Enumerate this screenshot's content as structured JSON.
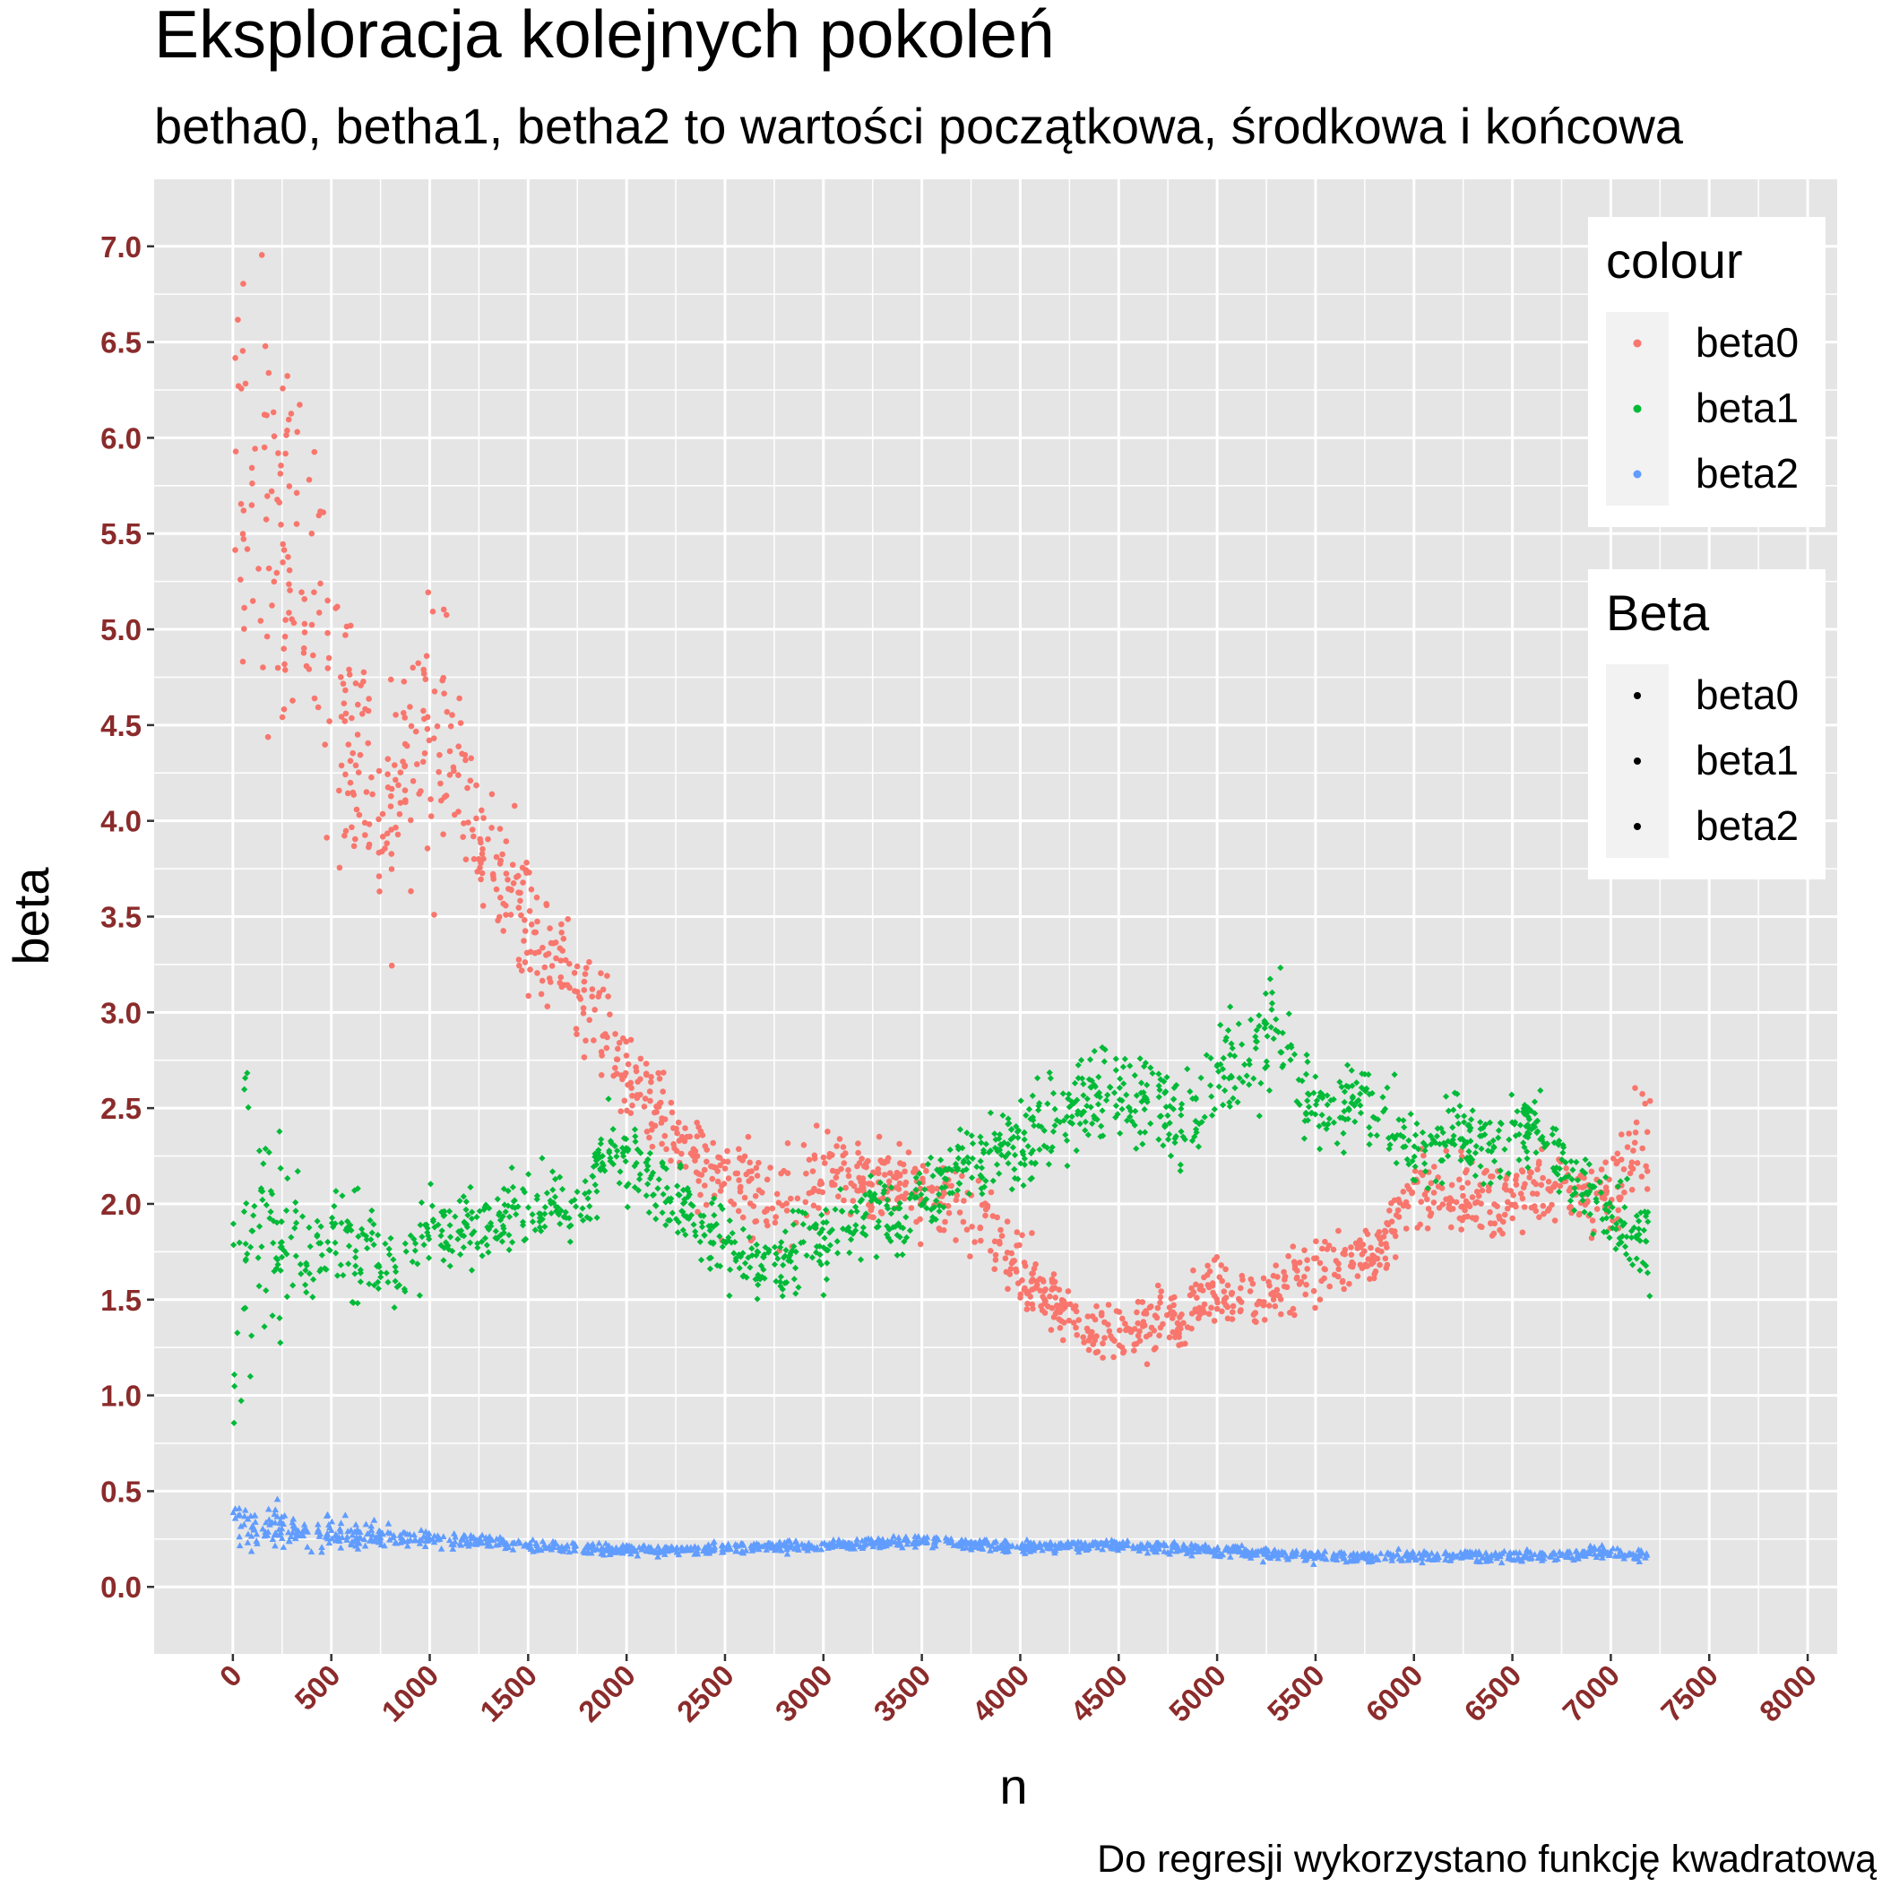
{
  "chart_data": {
    "type": "scatter",
    "title": "Eksploracja kolejnych pokoleń",
    "subtitle": "betha0, betha1, betha2 to wartości początkowa, środkowa i końcowa",
    "xlabel": "n",
    "ylabel": "beta",
    "caption": "Do regresji wykorzystano funkcję kwadratową",
    "xlim": [
      -400,
      8150
    ],
    "ylim": [
      -0.35,
      7.35
    ],
    "x_ticks": [
      "0",
      "500",
      "1000",
      "1500",
      "2000",
      "2500",
      "3000",
      "3500",
      "4000",
      "4500",
      "5000",
      "5500",
      "6000",
      "6500",
      "7000",
      "7500",
      "8000"
    ],
    "x_tick_values": [
      0,
      500,
      1000,
      1500,
      2000,
      2500,
      3000,
      3500,
      4000,
      4500,
      5000,
      5500,
      6000,
      6500,
      7000,
      7500,
      8000
    ],
    "y_ticks": [
      "0.0",
      "0.5",
      "1.0",
      "1.5",
      "2.0",
      "2.5",
      "3.0",
      "3.5",
      "4.0",
      "4.5",
      "5.0",
      "5.5",
      "6.0",
      "6.5",
      "7.0"
    ],
    "y_tick_values": [
      0,
      0.5,
      1,
      1.5,
      2,
      2.5,
      3,
      3.5,
      4,
      4.5,
      5,
      5.5,
      6,
      6.5,
      7
    ],
    "grid": true,
    "x_range_observed": [
      0,
      7200
    ],
    "series": [
      {
        "name": "beta0",
        "color": "#F8766D",
        "shape": "circle",
        "trend_x": [
          0,
          200,
          400,
          600,
          800,
          1000,
          1100,
          1200,
          1400,
          1600,
          1800,
          2000,
          2200,
          2400,
          2600,
          2800,
          3000,
          3200,
          3400,
          3600,
          3800,
          4000,
          4200,
          4400,
          4600,
          4800,
          5000,
          5200,
          5400,
          5600,
          5800,
          6000,
          6200,
          6400,
          6600,
          6800,
          7000,
          7200
        ],
        "trend_y": [
          5.9,
          5.5,
          5.2,
          4.3,
          4.1,
          4.5,
          4.6,
          4.0,
          3.6,
          3.35,
          3.05,
          2.7,
          2.4,
          2.2,
          2.1,
          2.0,
          2.15,
          2.1,
          2.1,
          2.0,
          1.9,
          1.65,
          1.45,
          1.3,
          1.35,
          1.4,
          1.55,
          1.5,
          1.6,
          1.7,
          1.75,
          2.05,
          2.05,
          1.95,
          2.1,
          2.05,
          2.05,
          2.35
        ],
        "spread": [
          0.45,
          0.5,
          0.5,
          0.35,
          0.3,
          0.35,
          0.35,
          0.2,
          0.2,
          0.2,
          0.15,
          0.12,
          0.12,
          0.12,
          0.12,
          0.12,
          0.12,
          0.1,
          0.1,
          0.1,
          0.1,
          0.1,
          0.08,
          0.08,
          0.08,
          0.08,
          0.08,
          0.08,
          0.08,
          0.08,
          0.08,
          0.1,
          0.1,
          0.1,
          0.1,
          0.1,
          0.12,
          0.15
        ]
      },
      {
        "name": "beta1",
        "color": "#00BA38",
        "shape": "diamond",
        "trend_x": [
          0,
          100,
          200,
          400,
          600,
          800,
          1000,
          1200,
          1400,
          1600,
          1800,
          1900,
          2000,
          2200,
          2400,
          2600,
          2800,
          3000,
          3200,
          3400,
          3600,
          3800,
          4000,
          4200,
          4400,
          4600,
          4800,
          5000,
          5200,
          5300,
          5400,
          5600,
          5800,
          6000,
          6200,
          6400,
          6600,
          6800,
          7000,
          7200
        ],
        "trend_y": [
          1.6,
          1.9,
          1.9,
          1.75,
          1.8,
          1.7,
          1.8,
          1.85,
          1.95,
          1.95,
          2.05,
          2.35,
          2.2,
          2.05,
          1.85,
          1.7,
          1.7,
          1.8,
          1.95,
          1.95,
          2.1,
          2.25,
          2.3,
          2.45,
          2.55,
          2.6,
          2.45,
          2.65,
          2.8,
          2.95,
          2.6,
          2.5,
          2.5,
          2.3,
          2.35,
          2.3,
          2.4,
          2.15,
          1.95,
          1.75
        ],
        "spread": [
          0.5,
          0.35,
          0.25,
          0.15,
          0.15,
          0.15,
          0.12,
          0.1,
          0.1,
          0.1,
          0.1,
          0.1,
          0.1,
          0.1,
          0.1,
          0.1,
          0.1,
          0.1,
          0.1,
          0.1,
          0.1,
          0.1,
          0.12,
          0.12,
          0.12,
          0.12,
          0.12,
          0.12,
          0.15,
          0.2,
          0.12,
          0.1,
          0.1,
          0.1,
          0.1,
          0.1,
          0.1,
          0.1,
          0.1,
          0.1
        ]
      },
      {
        "name": "beta2",
        "color": "#619CFF",
        "shape": "triangle",
        "trend_x": [
          0,
          200,
          500,
          1000,
          1500,
          2000,
          2500,
          3000,
          3500,
          4000,
          4500,
          5000,
          5500,
          6000,
          6500,
          7000,
          7200
        ],
        "trend_y": [
          0.33,
          0.31,
          0.28,
          0.25,
          0.22,
          0.19,
          0.2,
          0.22,
          0.24,
          0.21,
          0.22,
          0.19,
          0.16,
          0.16,
          0.16,
          0.18,
          0.16
        ],
        "spread": [
          0.06,
          0.05,
          0.04,
          0.02,
          0.015,
          0.015,
          0.015,
          0.015,
          0.015,
          0.015,
          0.015,
          0.015,
          0.015,
          0.015,
          0.015,
          0.015,
          0.015
        ]
      }
    ],
    "legends": [
      {
        "title": "colour",
        "entries": [
          "beta0",
          "beta1",
          "beta2"
        ],
        "colors": [
          "#F8766D",
          "#00BA38",
          "#619CFF"
        ],
        "placement": "top-right"
      },
      {
        "title": "Beta",
        "entries": [
          "beta0",
          "beta1",
          "beta2"
        ],
        "colors": [
          "#000000",
          "#000000",
          "#000000"
        ],
        "placement": "right"
      }
    ],
    "panel_color": "#E5E5E5",
    "gridline_color": "#FFFFFF",
    "tick_label_color": "#8B2B2B"
  }
}
